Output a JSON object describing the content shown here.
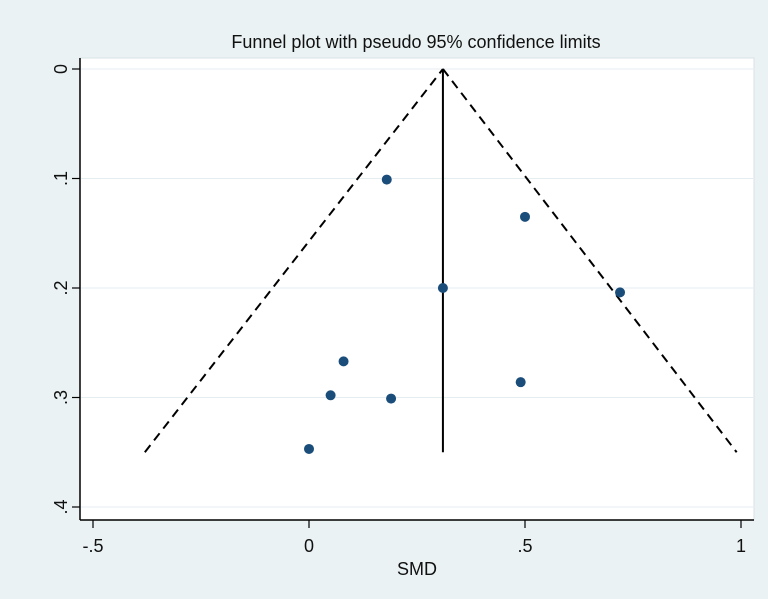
{
  "chart_data": {
    "type": "scatter",
    "title": "Funnel plot with pseudo 95% confidence limits",
    "xlabel": "SMD",
    "ylabel": "",
    "xlim": [
      -0.5,
      1
    ],
    "ylim": [
      0,
      0.4
    ],
    "y_reversed": true,
    "grid": true,
    "x_ticks": [
      -0.5,
      0,
      0.5,
      1
    ],
    "x_tick_labels": [
      "-.5",
      "0",
      ".5",
      "1"
    ],
    "y_ticks": [
      0,
      0.1,
      0.2,
      0.3,
      0.4
    ],
    "y_tick_labels": [
      "0",
      ".1",
      ".2",
      ".3",
      ".4"
    ],
    "pooled_effect": 0.31,
    "funnel_apex": {
      "x": 0.31,
      "y": 0
    },
    "funnel_base": {
      "left_x": -0.38,
      "right_x": 0.99,
      "y": 0.35
    },
    "pooled_line_range": [
      0,
      0.35
    ],
    "points": [
      {
        "x": 0.18,
        "y": 0.101
      },
      {
        "x": 0.5,
        "y": 0.135
      },
      {
        "x": 0.31,
        "y": 0.2
      },
      {
        "x": 0.72,
        "y": 0.204
      },
      {
        "x": 0.08,
        "y": 0.267
      },
      {
        "x": 0.49,
        "y": 0.286
      },
      {
        "x": 0.05,
        "y": 0.298
      },
      {
        "x": 0.19,
        "y": 0.301
      },
      {
        "x": 0.0,
        "y": 0.347
      }
    ],
    "colors": {
      "background": "#eaf2f3",
      "plot_background": "#ffffff",
      "point": "#1a4d7a",
      "grid": "#e6edf0",
      "line": "#000000"
    }
  }
}
